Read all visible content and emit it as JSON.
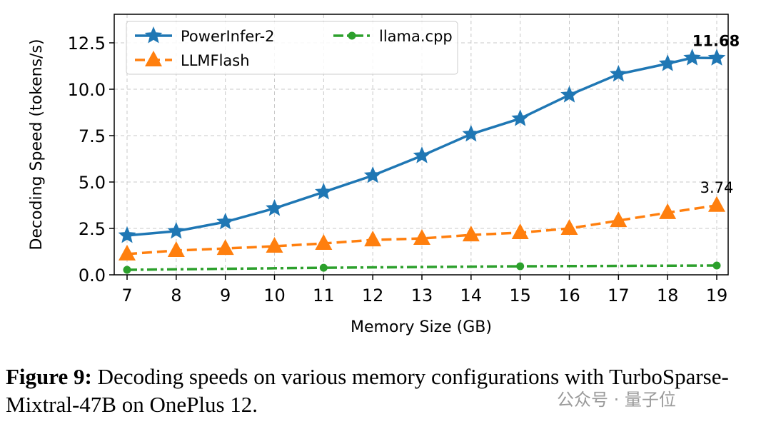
{
  "chart_data": {
    "type": "line",
    "xlabel": "Memory Size (GB)",
    "ylabel": "Decoding Speed (tokens/s)",
    "xlim": [
      6.75,
      19.25
    ],
    "ylim": [
      0,
      14
    ],
    "xticks": [
      "7",
      "8",
      "9",
      "10",
      "11",
      "12",
      "13",
      "14",
      "15",
      "16",
      "17",
      "18",
      "19"
    ],
    "yticks": [
      "0.0",
      "2.5",
      "5.0",
      "7.5",
      "10.0",
      "12.5"
    ],
    "grid": true,
    "legend_position": "top-left",
    "series": [
      {
        "name": "PowerInfer-2",
        "color": "#1f77b4",
        "marker": "star",
        "linestyle": "solid",
        "x": [
          7,
          8,
          9,
          10,
          11,
          12,
          13,
          14,
          15,
          16,
          17,
          18,
          18.5,
          19
        ],
        "y": [
          2.12,
          2.35,
          2.85,
          3.58,
          4.46,
          5.35,
          6.42,
          7.58,
          8.42,
          9.69,
          10.81,
          11.38,
          11.69,
          11.68
        ]
      },
      {
        "name": "LLMFlash",
        "color": "#ff7f0e",
        "marker": "triangle",
        "linestyle": "dashed",
        "x": [
          7,
          8,
          9,
          10,
          11,
          12,
          13,
          14,
          15,
          16,
          17,
          18,
          19
        ],
        "y": [
          1.12,
          1.31,
          1.42,
          1.54,
          1.69,
          1.88,
          1.96,
          2.15,
          2.27,
          2.5,
          2.92,
          3.35,
          3.74
        ]
      },
      {
        "name": "llama.cpp",
        "color": "#2ca02c",
        "marker": "circle",
        "linestyle": "dashdot",
        "x": [
          7,
          11,
          15,
          19
        ],
        "y": [
          0.27,
          0.38,
          0.46,
          0.5
        ]
      }
    ],
    "annotations": [
      {
        "text": "11.68",
        "x": 19,
        "y": 11.68,
        "bold": true
      },
      {
        "text": "3.74",
        "x": 19,
        "y": 3.74,
        "bold": false
      }
    ]
  },
  "caption": {
    "label": "Figure 9:",
    "text": " Decoding speeds on various memory configurations with TurboSparse-Mixtral-47B on OnePlus 12."
  },
  "watermark": "公众号 · 量子位"
}
